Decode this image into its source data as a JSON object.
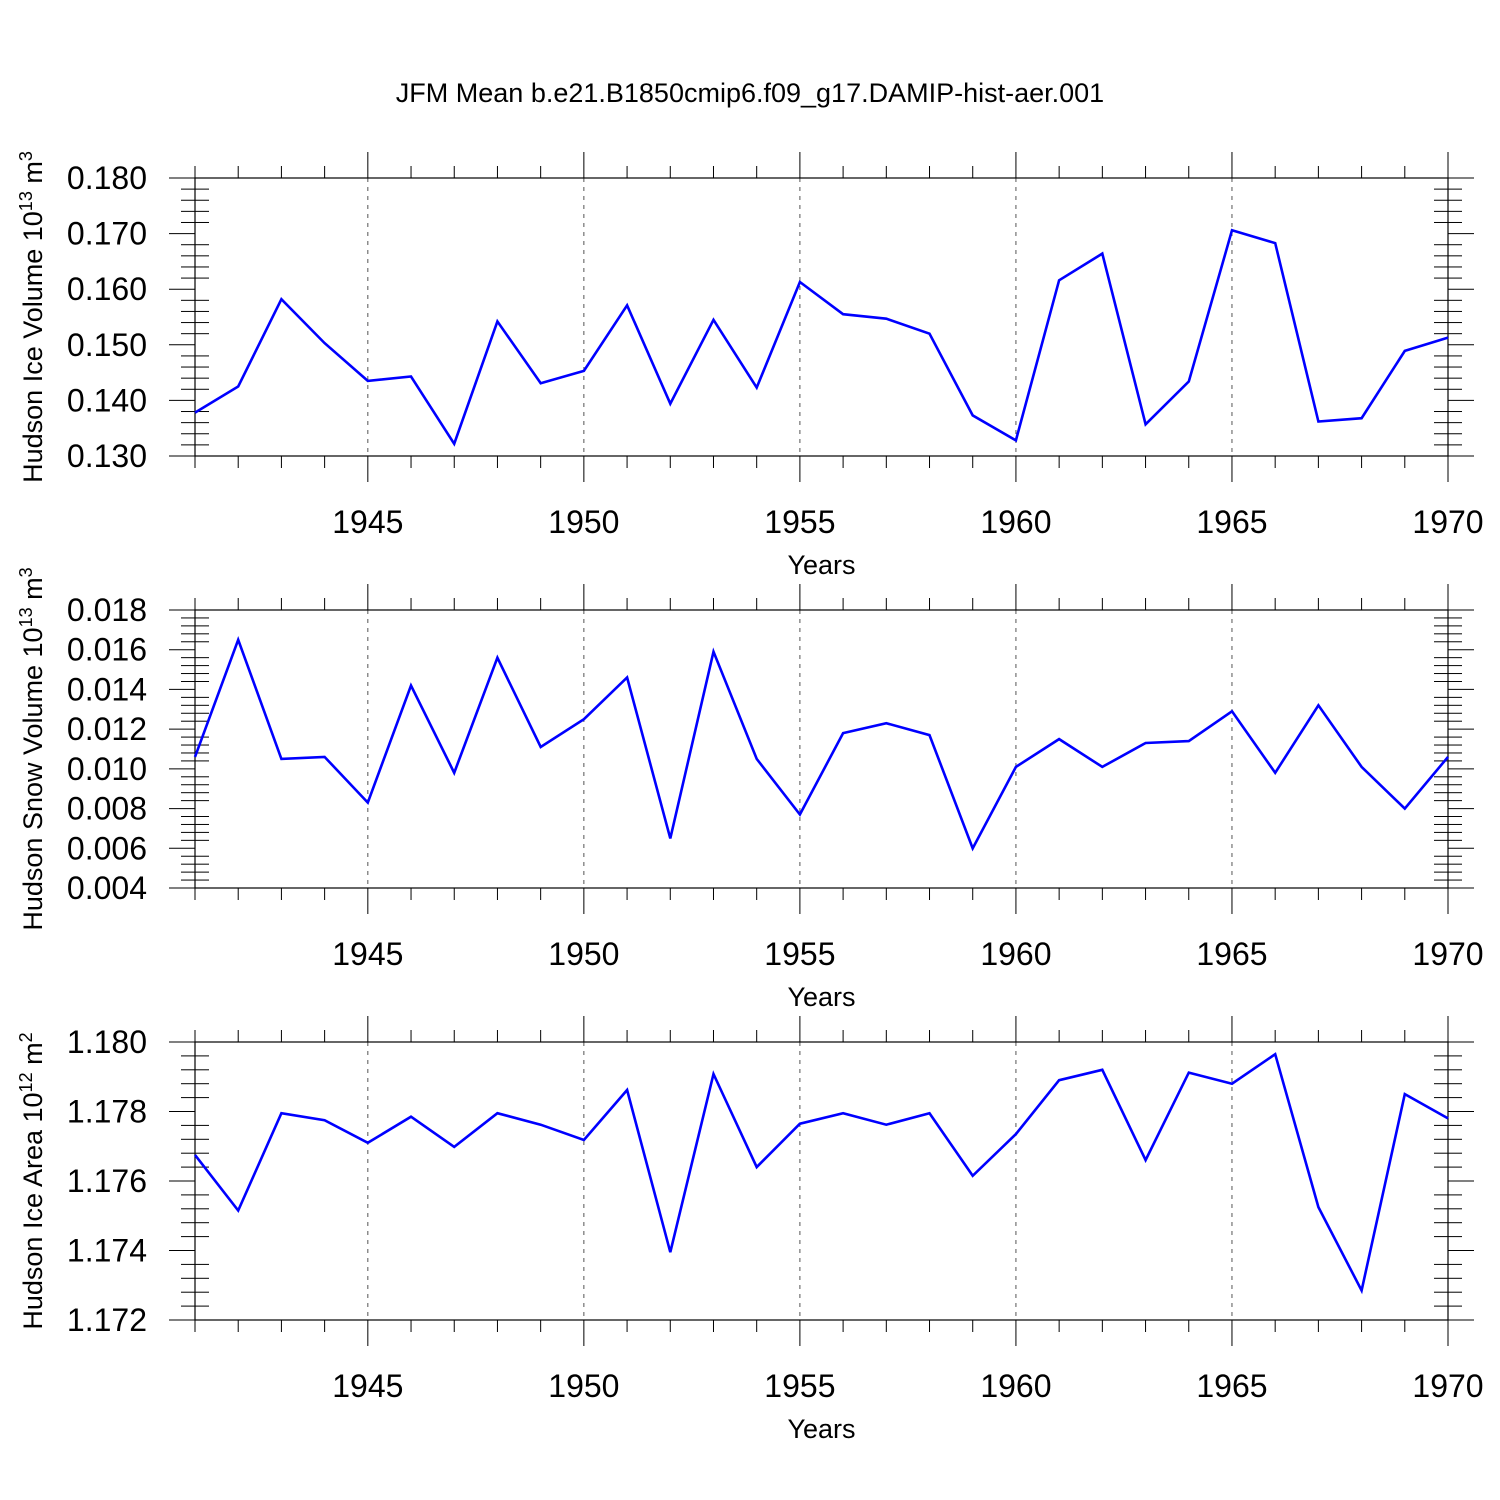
{
  "title": "JFM Mean b.e21.B1850cmip6.f09_g17.DAMIP-hist-aer.001",
  "colors": {
    "line": "#0000ff",
    "axis": "#000000",
    "grid": "#555555"
  },
  "chart_data": [
    {
      "type": "line",
      "xlabel": "Years",
      "ylabel_text": "Hudson Ice Volume 10",
      "ylabel_exp": "13",
      "ylabel_unit": " m",
      "ylabel_unit_exp": "3",
      "xlim": [
        1941,
        1970
      ],
      "ylim": [
        0.13,
        0.18
      ],
      "xticks": [
        1945,
        1950,
        1955,
        1960,
        1965,
        1970
      ],
      "yticks": [
        "0.130",
        "0.140",
        "0.150",
        "0.160",
        "0.170",
        "0.180"
      ],
      "grid": "vertical-dashed",
      "x": [
        1941,
        1942,
        1943,
        1944,
        1945,
        1946,
        1947,
        1948,
        1949,
        1950,
        1951,
        1952,
        1953,
        1954,
        1955,
        1956,
        1957,
        1958,
        1959,
        1960,
        1961,
        1962,
        1963,
        1964,
        1965,
        1966,
        1967,
        1968,
        1969,
        1970
      ],
      "series": [
        {
          "values": [
            0.1378,
            0.1425,
            0.1582,
            0.1503,
            0.1435,
            0.1443,
            0.1322,
            0.1542,
            0.1431,
            0.1453,
            0.1571,
            0.1394,
            0.1545,
            0.1423,
            0.1613,
            0.1555,
            0.1547,
            0.152,
            0.1373,
            0.1328,
            0.1616,
            0.1664,
            0.1357,
            0.1434,
            0.1706,
            0.1683,
            0.1362,
            0.1368,
            0.1489,
            0.1513
          ]
        }
      ]
    },
    {
      "type": "line",
      "xlabel": "Years",
      "ylabel_text": "Hudson Snow Volume 10",
      "ylabel_exp": "13",
      "ylabel_unit": " m",
      "ylabel_unit_exp": "3",
      "xlim": [
        1941,
        1970
      ],
      "ylim": [
        0.004,
        0.018
      ],
      "xticks": [
        1945,
        1950,
        1955,
        1960,
        1965,
        1970
      ],
      "yticks": [
        "0.004",
        "0.006",
        "0.008",
        "0.010",
        "0.012",
        "0.014",
        "0.016",
        "0.018"
      ],
      "grid": "vertical-dashed",
      "x": [
        1941,
        1942,
        1943,
        1944,
        1945,
        1946,
        1947,
        1948,
        1949,
        1950,
        1951,
        1952,
        1953,
        1954,
        1955,
        1956,
        1957,
        1958,
        1959,
        1960,
        1961,
        1962,
        1963,
        1964,
        1965,
        1966,
        1967,
        1968,
        1969,
        1970
      ],
      "series": [
        {
          "values": [
            0.0106,
            0.0165,
            0.0105,
            0.0106,
            0.0083,
            0.0142,
            0.0098,
            0.0156,
            0.0111,
            0.0125,
            0.0146,
            0.0065,
            0.0159,
            0.0105,
            0.0077,
            0.0118,
            0.0123,
            0.0117,
            0.006,
            0.0101,
            0.0115,
            0.0101,
            0.0113,
            0.0114,
            0.0129,
            0.0098,
            0.0132,
            0.0101,
            0.008,
            0.0106
          ]
        }
      ]
    },
    {
      "type": "line",
      "xlabel": "Years",
      "ylabel_text": "Hudson Ice Area 10",
      "ylabel_exp": "12",
      "ylabel_unit": " m",
      "ylabel_unit_exp": "2",
      "xlim": [
        1941,
        1970
      ],
      "ylim": [
        1.172,
        1.18
      ],
      "xticks": [
        1945,
        1950,
        1955,
        1960,
        1965,
        1970
      ],
      "yticks": [
        "1.172",
        "1.174",
        "1.176",
        "1.178",
        "1.180"
      ],
      "grid": "vertical-dashed",
      "x": [
        1941,
        1942,
        1943,
        1944,
        1945,
        1946,
        1947,
        1948,
        1949,
        1950,
        1951,
        1952,
        1953,
        1954,
        1955,
        1956,
        1957,
        1958,
        1959,
        1960,
        1961,
        1962,
        1963,
        1964,
        1965,
        1966,
        1967,
        1968,
        1969,
        1970
      ],
      "series": [
        {
          "values": [
            1.17675,
            1.17515,
            1.17795,
            1.17775,
            1.1771,
            1.17785,
            1.17698,
            1.17795,
            1.17762,
            1.17718,
            1.17862,
            1.17395,
            1.17908,
            1.1764,
            1.17765,
            1.17795,
            1.17762,
            1.17795,
            1.17615,
            1.17735,
            1.1789,
            1.1792,
            1.1766,
            1.17912,
            1.1788,
            1.17965,
            1.17525,
            1.17285,
            1.1785,
            1.1778
          ]
        }
      ]
    }
  ]
}
